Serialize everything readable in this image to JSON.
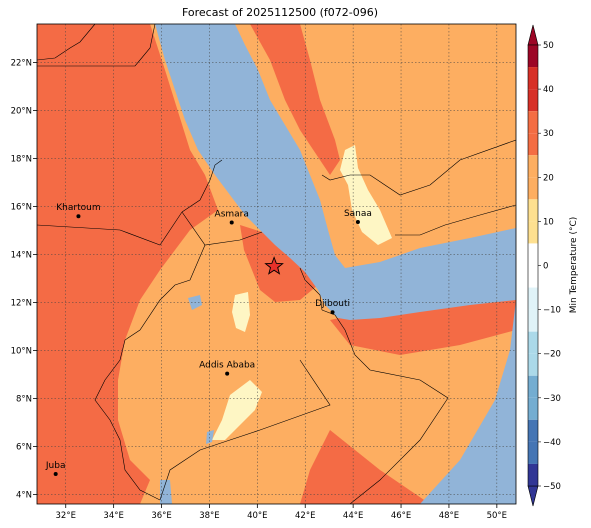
{
  "title": "Forecast of 2025112500 (f072-096)",
  "map": {
    "lon_range": [
      30.8,
      50.8
    ],
    "lat_range": [
      3.6,
      23.6
    ],
    "lon_ticks": [
      "32°E",
      "34°E",
      "36°E",
      "38°E",
      "40°E",
      "42°E",
      "44°E",
      "46°E",
      "48°E",
      "50°E"
    ],
    "lat_ticks": [
      "22°N",
      "20°N",
      "18°N",
      "16°N",
      "14°N",
      "12°N",
      "10°N",
      "8°N",
      "6°N",
      "4°N"
    ],
    "cities": [
      {
        "name": "Khartoum",
        "lon": 32.53,
        "lat": 15.59
      },
      {
        "name": "Asmara",
        "lon": 38.93,
        "lat": 15.33
      },
      {
        "name": "Sanaa",
        "lon": 44.2,
        "lat": 15.35
      },
      {
        "name": "Djibouti",
        "lon": 43.14,
        "lat": 11.59
      },
      {
        "name": "Addis Ababa",
        "lon": 38.74,
        "lat": 9.03
      },
      {
        "name": "Juba",
        "lon": 31.58,
        "lat": 4.85
      }
    ],
    "star": {
      "lon": 40.7,
      "lat": 13.5
    },
    "colors": {
      "sea": "#91b4d8",
      "band_20_30": "#f46b45",
      "band_10_20": "#fdae61",
      "band_0_10": "#fef6c4"
    }
  },
  "colorbar": {
    "label": "Min Temperature (°C)",
    "ticks": [
      "50",
      "40",
      "30",
      "20",
      "10",
      "0",
      "−10",
      "−20",
      "−30",
      "−40",
      "−50"
    ],
    "colors": [
      "#9c0626",
      "#d73027",
      "#f46d43",
      "#fdae61",
      "#fee090",
      "#ffffff",
      "#e0f3f8",
      "#abd9e9",
      "#74add1",
      "#4575b4",
      "#313695"
    ]
  }
}
